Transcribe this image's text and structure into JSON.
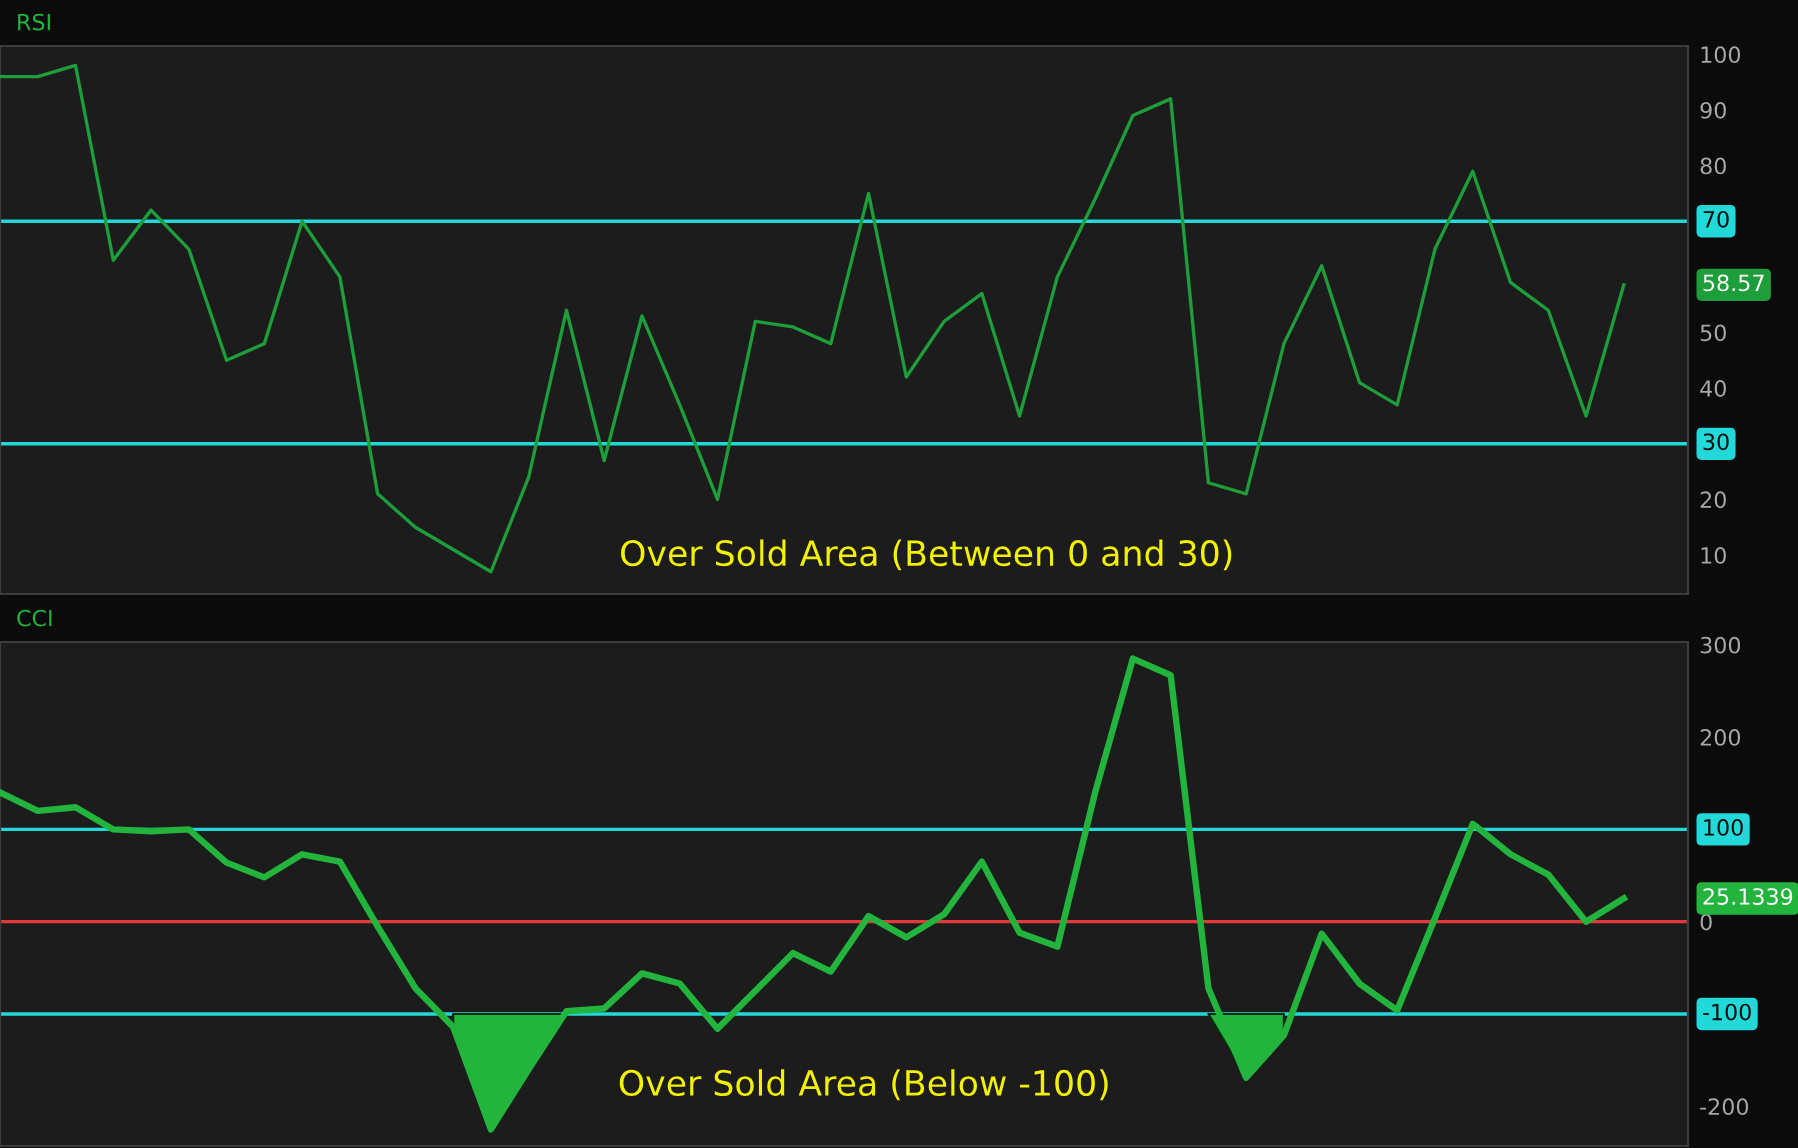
{
  "chart_data": [
    {
      "type": "line",
      "title": "RSI",
      "categories": [
        null,
        null,
        null,
        null,
        null,
        null,
        null,
        null,
        null,
        null,
        null,
        null,
        null,
        null,
        null,
        null,
        null,
        null,
        null,
        null,
        null,
        null,
        null,
        null,
        null,
        null,
        null,
        null,
        null,
        null,
        null,
        null,
        null,
        null,
        null,
        null,
        null,
        null,
        null,
        null,
        null,
        null,
        null,
        null
      ],
      "series": [
        {
          "color": "#1e9e3a",
          "values": [
            96,
            96,
            98,
            63,
            72,
            65,
            45,
            48,
            70,
            60,
            21,
            15,
            11,
            7,
            24,
            54,
            27,
            53,
            37,
            20,
            52,
            51,
            48,
            75,
            42,
            52,
            57,
            35,
            60,
            74,
            89,
            92,
            23,
            21,
            48,
            62,
            41,
            37,
            65,
            79,
            59,
            54,
            35,
            58.57
          ]
        }
      ],
      "ylim": [
        3,
        101.5
      ],
      "yticks": [
        10,
        20,
        40,
        50,
        80,
        90,
        100
      ],
      "tick_labels": "y",
      "ref_lines": [
        {
          "axis": "y",
          "value": 70,
          "label": "70",
          "color": "#22d8d8"
        },
        {
          "axis": "y",
          "value": 30,
          "label": "30",
          "color": "#22d8d8"
        }
      ],
      "annotations": [
        "Over Sold Area (Between 0 and 30)",
        "58.57"
      ]
    },
    {
      "type": "line",
      "title": "CCI",
      "categories": [
        null,
        null,
        null,
        null,
        null,
        null,
        null,
        null,
        null,
        null,
        null,
        null,
        null,
        null,
        null,
        null,
        null,
        null,
        null,
        null,
        null,
        null,
        null,
        null,
        null,
        null,
        null,
        null,
        null,
        null,
        null,
        null,
        null,
        null,
        null,
        null,
        null,
        null,
        null,
        null,
        null,
        null,
        null,
        null
      ],
      "series": [
        {
          "color": "#22b43c",
          "values": [
            140,
            120,
            124,
            100,
            98,
            100,
            64,
            48,
            73,
            65,
            -5,
            -72,
            -114,
            -225,
            -160,
            -97,
            -94,
            -56,
            -67,
            -116,
            -75,
            -34,
            -54,
            6,
            -17,
            8,
            65,
            -12,
            -27,
            140,
            285,
            267,
            -72,
            -169,
            -123,
            -13,
            -67,
            -96,
            4,
            106,
            73,
            51,
            0,
            25.1339
          ],
          "lower": [
            null,
            null,
            null,
            null,
            null,
            null,
            null,
            null,
            null,
            null,
            null,
            null,
            -114,
            -225,
            -160,
            -100,
            null,
            null,
            null,
            null,
            null,
            null,
            null,
            null,
            null,
            null,
            null,
            null,
            null,
            null,
            null,
            null,
            -100,
            -169,
            -123,
            null,
            null,
            null,
            null,
            null,
            null,
            null,
            null,
            null
          ],
          "upper": [
            null,
            null,
            null,
            null,
            null,
            null,
            null,
            null,
            null,
            null,
            null,
            null,
            -100,
            -100,
            -100,
            -100,
            null,
            null,
            null,
            null,
            null,
            null,
            null,
            null,
            null,
            null,
            null,
            null,
            null,
            null,
            null,
            null,
            -100,
            -100,
            -100,
            null,
            null,
            null,
            null,
            null,
            null,
            null,
            null,
            null
          ]
        }
      ],
      "ylim": [
        -243,
        303
      ],
      "yticks": [
        -200,
        0,
        200,
        300
      ],
      "tick_labels": "y",
      "ref_lines": [
        {
          "axis": "y",
          "value": 100,
          "label": "100",
          "color": "#22d8d8"
        },
        {
          "axis": "y",
          "value": 0,
          "label": null,
          "color": "#e03a3a"
        },
        {
          "axis": "y",
          "value": -100,
          "label": "-100",
          "color": "#22d8d8"
        }
      ],
      "annotations": [
        "Over Sold Area (Below -100)",
        "25.1339"
      ]
    }
  ]
}
